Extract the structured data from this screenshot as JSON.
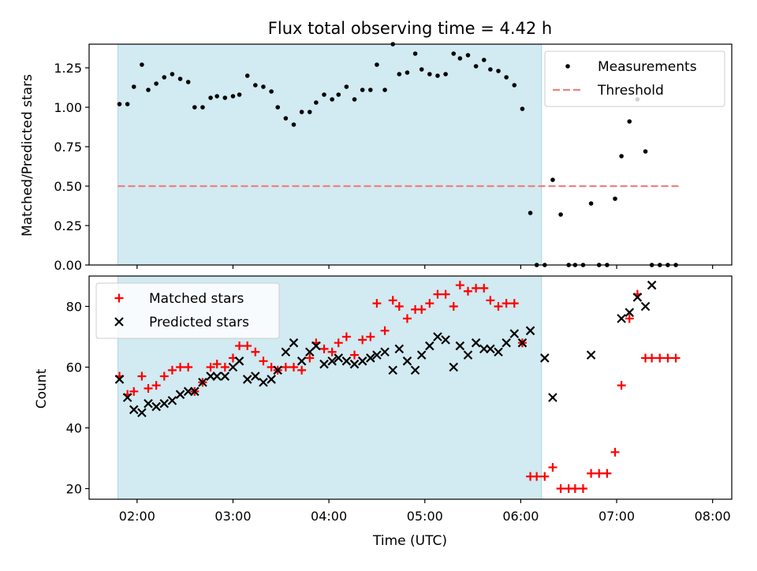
{
  "chart_data": [
    {
      "type": "scatter",
      "title": "Flux total observing time = 4.42 h",
      "ylabel": "Matched/Predicted stars",
      "xlabel": "",
      "ylim": [
        0,
        1.4
      ],
      "xlim": [
        "01:30",
        "08:12"
      ],
      "yticks": [
        "0.00",
        "0.25",
        "0.50",
        "0.75",
        "1.00",
        "1.25"
      ],
      "highlight_span": [
        "01:48",
        "06:13"
      ],
      "highlight_color": "#add8e6",
      "legend_position": "upper right",
      "series": [
        {
          "name": "Measurements",
          "marker": "dot",
          "color": "#000000",
          "points": [
            [
              "01:49",
              1.02
            ],
            [
              "01:54",
              1.02
            ],
            [
              "01:58",
              1.13
            ],
            [
              "02:03",
              1.27
            ],
            [
              "02:07",
              1.11
            ],
            [
              "02:12",
              1.15
            ],
            [
              "02:17",
              1.19
            ],
            [
              "02:22",
              1.21
            ],
            [
              "02:27",
              1.18
            ],
            [
              "02:32",
              1.16
            ],
            [
              "02:36",
              1.0
            ],
            [
              "02:41",
              1.0
            ],
            [
              "02:46",
              1.06
            ],
            [
              "02:50",
              1.07
            ],
            [
              "02:55",
              1.06
            ],
            [
              "03:00",
              1.07
            ],
            [
              "03:04",
              1.08
            ],
            [
              "03:09",
              1.2
            ],
            [
              "03:14",
              1.14
            ],
            [
              "03:19",
              1.13
            ],
            [
              "03:24",
              1.1
            ],
            [
              "03:28",
              1.0
            ],
            [
              "03:33",
              0.93
            ],
            [
              "03:38",
              0.89
            ],
            [
              "03:43",
              0.97
            ],
            [
              "03:48",
              0.97
            ],
            [
              "03:52",
              1.03
            ],
            [
              "03:57",
              1.08
            ],
            [
              "04:02",
              1.05
            ],
            [
              "04:06",
              1.08
            ],
            [
              "04:11",
              1.13
            ],
            [
              "04:16",
              1.05
            ],
            [
              "04:21",
              1.11
            ],
            [
              "04:26",
              1.11
            ],
            [
              "04:30",
              1.27
            ],
            [
              "04:35",
              1.11
            ],
            [
              "04:40",
              1.4
            ],
            [
              "04:44",
              1.21
            ],
            [
              "04:49",
              1.22
            ],
            [
              "04:54",
              1.34
            ],
            [
              "04:58",
              1.24
            ],
            [
              "05:03",
              1.21
            ],
            [
              "05:08",
              1.2
            ],
            [
              "05:13",
              1.21
            ],
            [
              "05:18",
              1.34
            ],
            [
              "05:22",
              1.31
            ],
            [
              "05:27",
              1.33
            ],
            [
              "05:32",
              1.26
            ],
            [
              "05:37",
              1.3
            ],
            [
              "05:41",
              1.24
            ],
            [
              "05:46",
              1.23
            ],
            [
              "05:51",
              1.19
            ],
            [
              "05:56",
              1.14
            ],
            [
              "06:01",
              0.99
            ],
            [
              "06:06",
              0.33
            ],
            [
              "06:10",
              0.0
            ],
            [
              "06:15",
              0.0
            ],
            [
              "06:20",
              0.54
            ],
            [
              "06:25",
              0.32
            ],
            [
              "06:30",
              0.0
            ],
            [
              "06:34",
              0.0
            ],
            [
              "06:39",
              0.0
            ],
            [
              "06:44",
              0.39
            ],
            [
              "06:49",
              0.0
            ],
            [
              "06:54",
              0.0
            ],
            [
              "06:59",
              0.42
            ],
            [
              "07:03",
              0.69
            ],
            [
              "07:08",
              0.91
            ],
            [
              "07:13",
              1.05
            ],
            [
              "07:18",
              0.72
            ],
            [
              "07:22",
              0.0
            ],
            [
              "07:27",
              0.0
            ],
            [
              "07:32",
              0.0
            ],
            [
              "07:37",
              0.0
            ]
          ]
        },
        {
          "name": "Threshold",
          "style": "dashed",
          "color": "#f08080",
          "points": [
            [
              "01:48",
              0.5
            ],
            [
              "07:40",
              0.5
            ]
          ]
        }
      ]
    },
    {
      "type": "scatter",
      "title": "",
      "ylabel": "Count",
      "xlabel": "Time (UTC)",
      "ylim": [
        16.5,
        90
      ],
      "xlim": [
        "01:30",
        "08:12"
      ],
      "yticks": [
        "20",
        "40",
        "60",
        "80"
      ],
      "xticks": [
        "02:00",
        "03:00",
        "04:00",
        "05:00",
        "06:00",
        "07:00",
        "08:00"
      ],
      "highlight_span": [
        "01:48",
        "06:13"
      ],
      "highlight_color": "#add8e6",
      "legend_position": "upper left",
      "series": [
        {
          "name": "Matched stars",
          "marker": "plus",
          "color": "#ff0000",
          "points": [
            [
              "01:49",
              57
            ],
            [
              "01:54",
              51
            ],
            [
              "01:58",
              52
            ],
            [
              "02:03",
              57
            ],
            [
              "02:07",
              53
            ],
            [
              "02:12",
              54
            ],
            [
              "02:17",
              57
            ],
            [
              "02:22",
              59
            ],
            [
              "02:27",
              60
            ],
            [
              "02:32",
              60
            ],
            [
              "02:36",
              52
            ],
            [
              "02:41",
              55
            ],
            [
              "02:46",
              60
            ],
            [
              "02:50",
              61
            ],
            [
              "02:55",
              60
            ],
            [
              "03:00",
              63
            ],
            [
              "03:04",
              67
            ],
            [
              "03:09",
              67
            ],
            [
              "03:14",
              65
            ],
            [
              "03:19",
              62
            ],
            [
              "03:24",
              60
            ],
            [
              "03:28",
              59
            ],
            [
              "03:33",
              60
            ],
            [
              "03:38",
              60
            ],
            [
              "03:43",
              59
            ],
            [
              "03:48",
              63
            ],
            [
              "03:52",
              68
            ],
            [
              "03:57",
              66
            ],
            [
              "04:02",
              65
            ],
            [
              "04:06",
              68
            ],
            [
              "04:11",
              70
            ],
            [
              "04:16",
              64
            ],
            [
              "04:21",
              69
            ],
            [
              "04:26",
              70
            ],
            [
              "04:30",
              81
            ],
            [
              "04:35",
              72
            ],
            [
              "04:40",
              82
            ],
            [
              "04:44",
              80
            ],
            [
              "04:49",
              76
            ],
            [
              "04:54",
              79
            ],
            [
              "04:58",
              79
            ],
            [
              "05:03",
              81
            ],
            [
              "05:08",
              84
            ],
            [
              "05:13",
              84
            ],
            [
              "05:18",
              80
            ],
            [
              "05:22",
              87
            ],
            [
              "05:27",
              85
            ],
            [
              "05:32",
              86
            ],
            [
              "05:37",
              86
            ],
            [
              "05:41",
              82
            ],
            [
              "05:46",
              80
            ],
            [
              "05:51",
              81
            ],
            [
              "05:56",
              81
            ],
            [
              "06:01",
              68
            ],
            [
              "06:06",
              24
            ],
            [
              "06:10",
              24
            ],
            [
              "06:15",
              24
            ],
            [
              "06:20",
              27
            ],
            [
              "06:25",
              20
            ],
            [
              "06:30",
              20
            ],
            [
              "06:34",
              20
            ],
            [
              "06:39",
              20
            ],
            [
              "06:44",
              25
            ],
            [
              "06:49",
              25
            ],
            [
              "06:54",
              25
            ],
            [
              "06:59",
              32
            ],
            [
              "07:03",
              54
            ],
            [
              "07:08",
              76
            ],
            [
              "07:13",
              84
            ],
            [
              "07:18",
              63
            ],
            [
              "07:22",
              63
            ],
            [
              "07:27",
              63
            ],
            [
              "07:32",
              63
            ],
            [
              "07:37",
              63
            ]
          ]
        },
        {
          "name": "Predicted stars",
          "marker": "x",
          "color": "#000000",
          "points": [
            [
              "01:49",
              56
            ],
            [
              "01:54",
              50
            ],
            [
              "01:58",
              46
            ],
            [
              "02:03",
              45
            ],
            [
              "02:07",
              48
            ],
            [
              "02:12",
              47
            ],
            [
              "02:17",
              48
            ],
            [
              "02:22",
              49
            ],
            [
              "02:27",
              51
            ],
            [
              "02:32",
              52
            ],
            [
              "02:36",
              52
            ],
            [
              "02:41",
              55
            ],
            [
              "02:46",
              57
            ],
            [
              "02:50",
              57
            ],
            [
              "02:55",
              57
            ],
            [
              "03:00",
              60
            ],
            [
              "03:04",
              62
            ],
            [
              "03:09",
              56
            ],
            [
              "03:14",
              57
            ],
            [
              "03:19",
              55
            ],
            [
              "03:24",
              56
            ],
            [
              "03:28",
              59
            ],
            [
              "03:33",
              65
            ],
            [
              "03:38",
              68
            ],
            [
              "03:43",
              62
            ],
            [
              "03:48",
              65
            ],
            [
              "03:52",
              67
            ],
            [
              "03:57",
              61
            ],
            [
              "04:02",
              62
            ],
            [
              "04:06",
              63
            ],
            [
              "04:11",
              62
            ],
            [
              "04:16",
              61
            ],
            [
              "04:21",
              62
            ],
            [
              "04:26",
              63
            ],
            [
              "04:30",
              64
            ],
            [
              "04:35",
              65
            ],
            [
              "04:40",
              59
            ],
            [
              "04:44",
              66
            ],
            [
              "04:49",
              62
            ],
            [
              "04:54",
              59
            ],
            [
              "04:58",
              64
            ],
            [
              "05:03",
              67
            ],
            [
              "05:08",
              70
            ],
            [
              "05:13",
              69
            ],
            [
              "05:18",
              60
            ],
            [
              "05:22",
              67
            ],
            [
              "05:27",
              64
            ],
            [
              "05:32",
              68
            ],
            [
              "05:37",
              66
            ],
            [
              "05:41",
              66
            ],
            [
              "05:46",
              65
            ],
            [
              "05:51",
              68
            ],
            [
              "05:56",
              71
            ],
            [
              "06:01",
              68
            ],
            [
              "06:06",
              72
            ],
            [
              "06:15",
              63
            ],
            [
              "06:20",
              50
            ],
            [
              "06:44",
              64
            ],
            [
              "07:03",
              76
            ],
            [
              "07:08",
              78
            ],
            [
              "07:13",
              83
            ],
            [
              "07:18",
              80
            ],
            [
              "07:22",
              87
            ]
          ]
        }
      ]
    }
  ]
}
